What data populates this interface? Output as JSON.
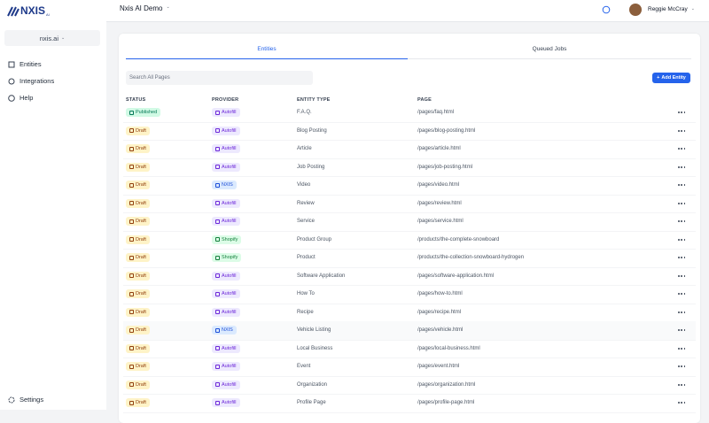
{
  "logo": {
    "name": "NXIS",
    "suffix": "AI"
  },
  "sidebar": {
    "workspace": "nxis.ai",
    "nav": [
      "Entities",
      "Integrations",
      "Help"
    ],
    "footer": "Settings"
  },
  "header": {
    "project": "Nxis AI Demo",
    "user": "Reggie McCray"
  },
  "tabs": [
    "Entities",
    "Queued Jobs"
  ],
  "search_placeholder": "Search All Pages",
  "add_button": "Add Entity",
  "table": {
    "columns": [
      "STATUS",
      "PROVIDER",
      "ENTITY TYPE",
      "PAGE"
    ],
    "rows": [
      [
        "Published",
        "Autofill",
        "F.A.Q.",
        "/pages/faq.html"
      ],
      [
        "Draft",
        "Autofill",
        "Blog Posting",
        "/pages/blog-posting.html"
      ],
      [
        "Draft",
        "Autofill",
        "Article",
        "/pages/article.html"
      ],
      [
        "Draft",
        "Autofill",
        "Job Posting",
        "/pages/job-posting.html"
      ],
      [
        "Draft",
        "NXIS",
        "Video",
        "/pages/video.html"
      ],
      [
        "Draft",
        "Autofill",
        "Review",
        "/pages/review.html"
      ],
      [
        "Draft",
        "Autofill",
        "Service",
        "/pages/service.html"
      ],
      [
        "Draft",
        "Shopify",
        "Product Group",
        "/products/the-complete-snowboard"
      ],
      [
        "Draft",
        "Shopify",
        "Product",
        "/products/the-collection-snowboard-hydrogen"
      ],
      [
        "Draft",
        "Autofill",
        "Software Application",
        "/pages/software-application.html"
      ],
      [
        "Draft",
        "Autofill",
        "How To",
        "/pages/how-to.html"
      ],
      [
        "Draft",
        "Autofill",
        "Recipe",
        "/pages/recipe.html"
      ],
      [
        "Draft",
        "NXIS",
        "Vehicle Listing",
        "/pages/vehicle.html"
      ],
      [
        "Draft",
        "Autofill",
        "Local Business",
        "/pages/local-business.html"
      ],
      [
        "Draft",
        "Autofill",
        "Event",
        "/pages/event.html"
      ],
      [
        "Draft",
        "Autofill",
        "Organization",
        "/pages/organization.html"
      ],
      [
        "Draft",
        "Autofill",
        "Profile Page",
        "/pages/profile-page.html"
      ]
    ]
  }
}
